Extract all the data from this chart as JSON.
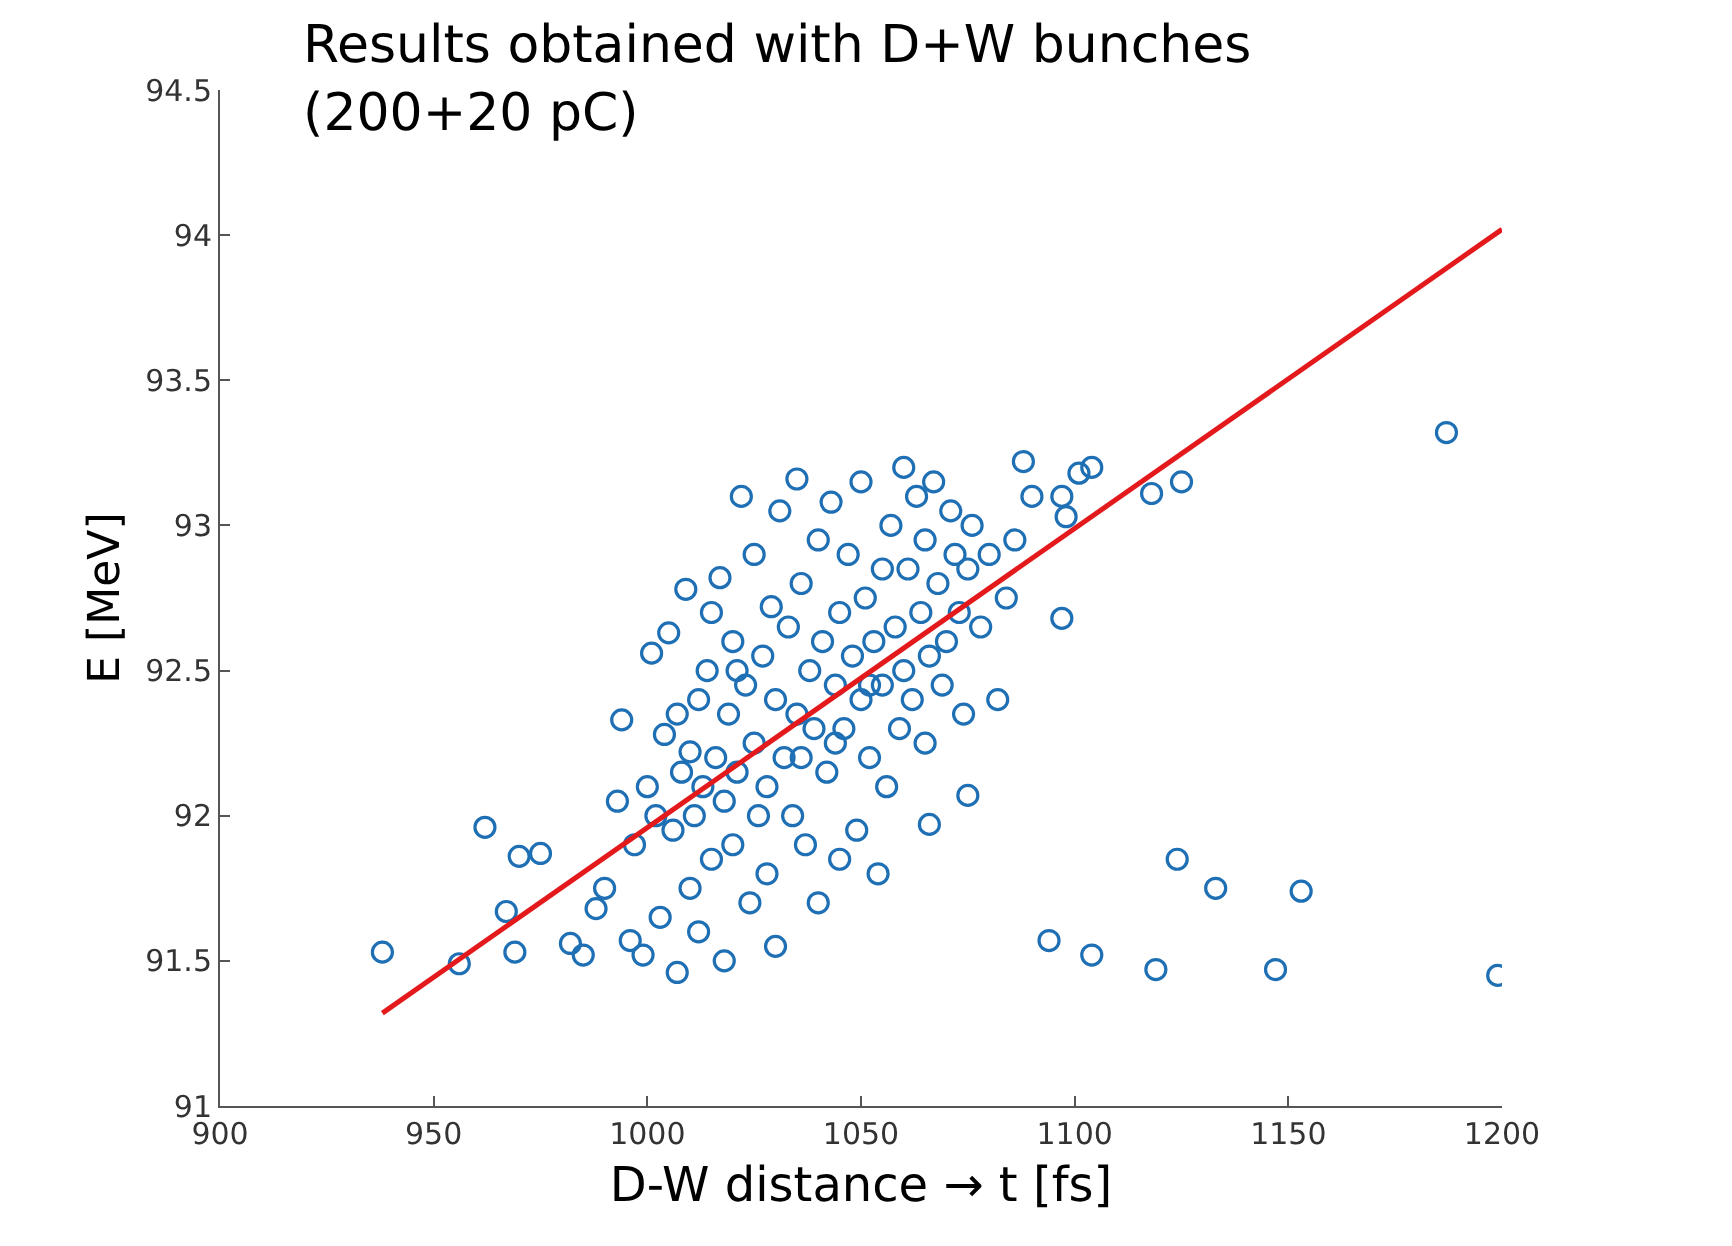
{
  "chart_data": {
    "type": "scatter",
    "title": "Results obtained with D+W bunches\n(200+20 pC)",
    "xlabel": "D-W distance → t [fs]",
    "ylabel": "E [MeV]",
    "xlim": [
      900,
      1200
    ],
    "xticks": [
      900,
      950,
      1000,
      1050,
      1100,
      1150,
      1200
    ],
    "ylim": [
      91,
      94.5
    ],
    "yticks": [
      91,
      91.5,
      92,
      92.5,
      93,
      93.5,
      94,
      94.5
    ],
    "series": [
      {
        "marker": "circle",
        "color": "#1f6fb4",
        "x": [
          938,
          956,
          962,
          967,
          969,
          970,
          975,
          982,
          985,
          988,
          990,
          993,
          994,
          996,
          997,
          999,
          1000,
          1001,
          1002,
          1003,
          1004,
          1005,
          1006,
          1007,
          1007,
          1008,
          1009,
          1010,
          1010,
          1011,
          1012,
          1012,
          1013,
          1014,
          1015,
          1015,
          1016,
          1017,
          1018,
          1018,
          1019,
          1020,
          1020,
          1021,
          1022,
          1023,
          1024,
          1025,
          1025,
          1026,
          1027,
          1028,
          1029,
          1030,
          1030,
          1031,
          1032,
          1033,
          1034,
          1035,
          1035,
          1036,
          1037,
          1038,
          1039,
          1040,
          1040,
          1041,
          1042,
          1043,
          1044,
          1045,
          1045,
          1046,
          1047,
          1048,
          1049,
          1050,
          1050,
          1051,
          1052,
          1053,
          1054,
          1055,
          1055,
          1056,
          1057,
          1058,
          1059,
          1060,
          1060,
          1061,
          1062,
          1063,
          1064,
          1065,
          1065,
          1066,
          1067,
          1068,
          1069,
          1070,
          1071,
          1072,
          1073,
          1074,
          1075,
          1076,
          1078,
          1080,
          1082,
          1084,
          1086,
          1088,
          1090,
          1094,
          1097,
          1097,
          1098,
          1101,
          1104,
          1104,
          1118,
          1119,
          1124,
          1125,
          1133,
          1147,
          1153,
          1187,
          1199,
          1066,
          1075,
          1021,
          1028,
          1036,
          1044,
          1052
        ],
        "values": [
          91.53,
          91.49,
          91.96,
          91.67,
          91.53,
          91.86,
          91.87,
          91.56,
          91.52,
          91.68,
          91.75,
          92.05,
          92.33,
          91.57,
          91.9,
          91.52,
          92.1,
          92.56,
          92.0,
          91.65,
          92.28,
          92.63,
          91.95,
          91.46,
          92.35,
          92.15,
          92.78,
          91.75,
          92.22,
          92.0,
          92.4,
          91.6,
          92.1,
          92.5,
          91.85,
          92.7,
          92.2,
          92.82,
          92.05,
          91.5,
          92.35,
          92.6,
          91.9,
          92.15,
          93.1,
          92.45,
          91.7,
          92.25,
          92.9,
          92.0,
          92.55,
          91.8,
          92.72,
          92.4,
          91.55,
          93.05,
          92.2,
          92.65,
          92.0,
          93.16,
          92.35,
          92.8,
          91.9,
          92.5,
          92.3,
          92.95,
          91.7,
          92.6,
          92.15,
          93.08,
          92.45,
          92.7,
          91.85,
          92.3,
          92.9,
          92.55,
          91.95,
          92.4,
          93.15,
          92.75,
          92.2,
          92.6,
          91.8,
          92.85,
          92.45,
          92.1,
          93.0,
          92.65,
          92.3,
          93.2,
          92.5,
          92.85,
          92.4,
          93.1,
          92.7,
          92.25,
          92.95,
          92.55,
          93.15,
          92.8,
          92.45,
          92.6,
          93.05,
          92.9,
          92.7,
          92.35,
          92.85,
          93.0,
          92.65,
          92.9,
          92.4,
          92.75,
          92.95,
          93.22,
          93.1,
          91.57,
          92.68,
          93.1,
          93.03,
          93.18,
          93.2,
          91.52,
          93.11,
          91.47,
          91.85,
          93.15,
          91.75,
          91.47,
          91.74,
          93.32,
          91.45,
          91.97,
          92.07,
          92.5,
          92.1,
          92.2,
          92.25,
          92.45
        ]
      },
      {
        "type": "line",
        "marker": "none",
        "line_style": "solid",
        "color": "#e3191c",
        "x": [
          938,
          1200
        ],
        "values": [
          91.32,
          94.02
        ]
      }
    ]
  }
}
